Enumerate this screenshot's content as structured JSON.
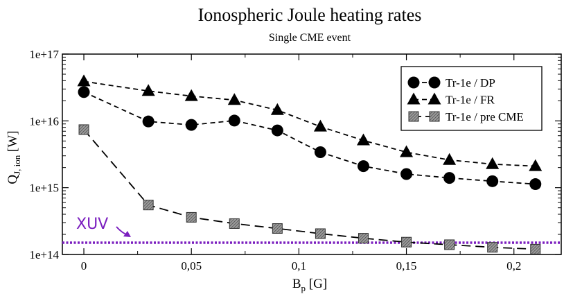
{
  "chart_data": {
    "type": "line",
    "title": "Ionospheric Joule heating rates",
    "subtitle": "Single CME event",
    "xlabel": {
      "main": "B",
      "sub": "p",
      "unit": " [G]"
    },
    "ylabel": {
      "main": "Q",
      "sub": "J, ion",
      "unit": " [W]"
    },
    "xlim": [
      -0.01,
      0.222
    ],
    "ylim": [
      100000000000000.0,
      1e+17
    ],
    "yscale": "log",
    "x_ticks": [
      0,
      0.05,
      0.1,
      0.15,
      0.2
    ],
    "x_tick_labels": [
      "0",
      "0,05",
      "0,1",
      "0,15",
      "0,2"
    ],
    "y_ticks": [
      100000000000000.0,
      1000000000000000.0,
      1e+16,
      1e+17
    ],
    "y_tick_labels": [
      "1e+14",
      "1e+15",
      "1e+16",
      "1e+17"
    ],
    "legend_position": "top-right",
    "series": [
      {
        "name": "Tr-1e / DP",
        "marker": "circle",
        "dash": "short",
        "color": "#000000",
        "x": [
          0,
          0.03,
          0.05,
          0.07,
          0.09,
          0.11,
          0.13,
          0.15,
          0.17,
          0.19,
          0.21
        ],
        "values": [
          2.7e+16,
          9800000000000000.0,
          8700000000000000.0,
          1.01e+16,
          7200000000000000.0,
          3400000000000000.0,
          2100000000000000.0,
          1600000000000000.0,
          1400000000000000.0,
          1250000000000000.0,
          1130000000000000.0
        ]
      },
      {
        "name": "Tr-1e / FR",
        "marker": "triangle",
        "dash": "short",
        "color": "#000000",
        "x": [
          0,
          0.03,
          0.05,
          0.07,
          0.09,
          0.11,
          0.13,
          0.15,
          0.17,
          0.19,
          0.21
        ],
        "values": [
          3.9e+16,
          2.8e+16,
          2.35e+16,
          2.05e+16,
          1.45e+16,
          8200000000000000.0,
          5100000000000000.0,
          3400000000000000.0,
          2600000000000000.0,
          2250000000000000.0,
          2100000000000000.0
        ]
      },
      {
        "name": "Tr-1e / pre CME",
        "marker": "hatched-square",
        "dash": "long",
        "color": "#808080",
        "x": [
          0,
          0.03,
          0.05,
          0.07,
          0.09,
          0.11,
          0.13,
          0.15,
          0.17,
          0.19,
          0.21
        ],
        "values": [
          7400000000000000.0,
          550000000000000.0,
          360000000000000.0,
          290000000000000.0,
          245000000000000.0,
          205000000000000.0,
          175000000000000.0,
          153000000000000.0,
          140000000000000.0,
          128000000000000.0,
          120000000000000.0
        ]
      }
    ],
    "reference_lines": [
      {
        "label": "XUV",
        "y": 150000000000000.0,
        "color": "#7b1fbf",
        "style": "dotted"
      }
    ]
  }
}
